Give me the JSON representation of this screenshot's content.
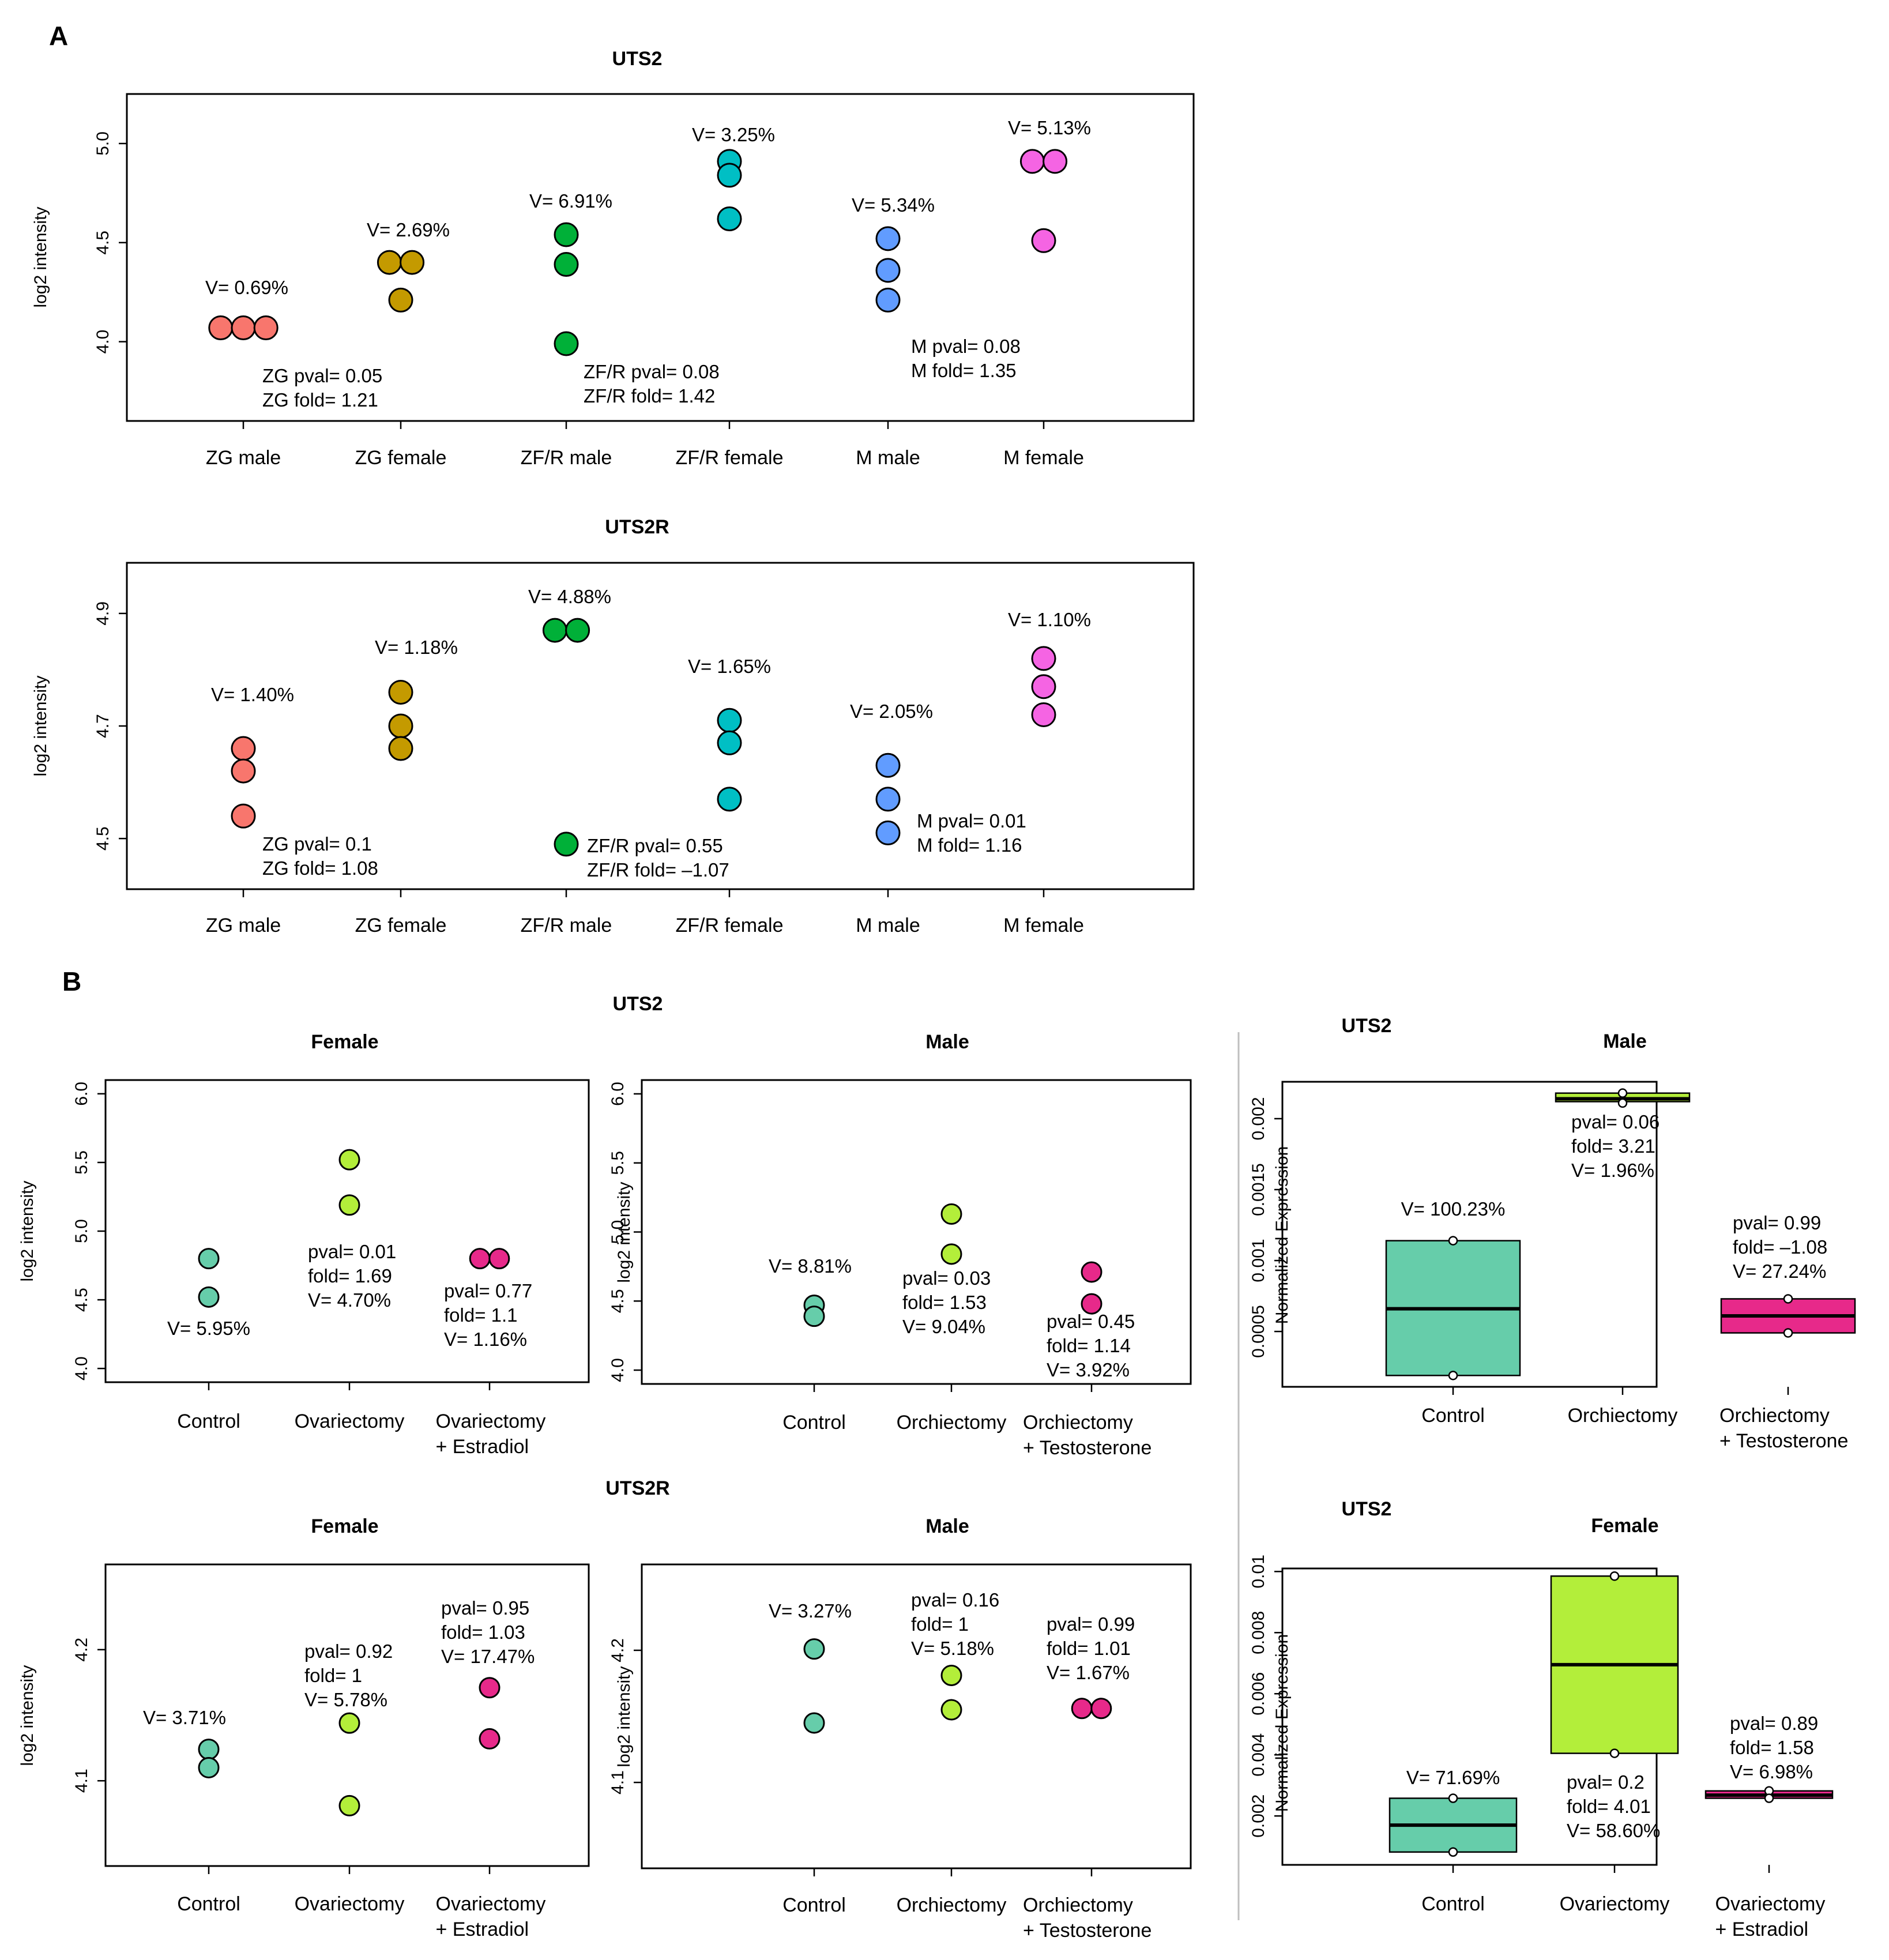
{
  "panel_labels": [
    "A",
    "B"
  ],
  "section_titles": {
    "b_uts2": "UTS2",
    "b_uts2r": "UTS2R"
  },
  "chart_data": [
    {
      "id": "A1",
      "type": "scatter",
      "title": "UTS2",
      "ylabel": "log2 intensity",
      "ylim": [
        3.6,
        5.25
      ],
      "yticks": [
        "4.0",
        "4.5",
        "5.0"
      ],
      "ytick_values": [
        4.0,
        4.5,
        5.0
      ],
      "categories": [
        "ZG male",
        "ZG female",
        "ZF/R male",
        "ZF/R female",
        "M male",
        "M female"
      ],
      "series": [
        {
          "category": "ZG male",
          "color": "#F8766D",
          "points": [
            [
              -0.14,
              4.07
            ],
            [
              0,
              4.07
            ],
            [
              0.14,
              4.07
            ]
          ]
        },
        {
          "category": "ZG female",
          "color": "#C49A00",
          "points": [
            [
              -0.07,
              4.4
            ],
            [
              0.07,
              4.4
            ],
            [
              0,
              4.21
            ]
          ]
        },
        {
          "category": "ZF/R male",
          "color": "#00B038",
          "points": [
            [
              0,
              4.54
            ],
            [
              0,
              4.39
            ],
            [
              0,
              3.99
            ]
          ]
        },
        {
          "category": "ZF/R female",
          "color": "#00BFC4",
          "points": [
            [
              0,
              4.91
            ],
            [
              0,
              4.84
            ],
            [
              0,
              4.62
            ]
          ]
        },
        {
          "category": "M male",
          "color": "#619CFF",
          "points": [
            [
              0,
              4.52
            ],
            [
              0,
              4.36
            ],
            [
              0,
              4.21
            ]
          ]
        },
        {
          "category": "M female",
          "color": "#F564E3",
          "points": [
            [
              -0.07,
              4.91
            ],
            [
              0.07,
              4.91
            ],
            [
              0,
              4.51
            ]
          ]
        }
      ],
      "annotations": [
        {
          "text": "V= 0.69%"
        },
        {
          "text": "V= 2.69%"
        },
        {
          "text": "V= 6.91%"
        },
        {
          "text": "V= 3.25%"
        },
        {
          "text": "V= 5.34%"
        },
        {
          "text": "V= 5.13%"
        },
        {
          "text": "ZG pval= 0.05"
        },
        {
          "text": "ZG fold= 1.21"
        },
        {
          "text": "ZF/R pval= 0.08"
        },
        {
          "text": "ZF/R fold= 1.42"
        },
        {
          "text": "M pval= 0.08"
        },
        {
          "text": "M fold= 1.35"
        }
      ]
    },
    {
      "id": "A2",
      "type": "scatter",
      "title": "UTS2R",
      "ylabel": "log2 intensity",
      "ylim": [
        4.41,
        4.99
      ],
      "yticks": [
        "4.5",
        "4.7",
        "4.9"
      ],
      "ytick_values": [
        4.5,
        4.7,
        4.9
      ],
      "categories": [
        "ZG male",
        "ZG female",
        "ZF/R male",
        "ZF/R female",
        "M male",
        "M female"
      ],
      "series": [
        {
          "category": "ZG male",
          "color": "#F8766D",
          "points": [
            [
              0,
              4.66
            ],
            [
              0,
              4.62
            ],
            [
              0,
              4.54
            ]
          ]
        },
        {
          "category": "ZG female",
          "color": "#C49A00",
          "points": [
            [
              0,
              4.76
            ],
            [
              0,
              4.7
            ],
            [
              0,
              4.66
            ]
          ]
        },
        {
          "category": "ZF/R male",
          "color": "#00B038",
          "points": [
            [
              -0.07,
              4.87
            ],
            [
              0.07,
              4.87
            ],
            [
              0,
              4.49
            ]
          ]
        },
        {
          "category": "ZF/R female",
          "color": "#00BFC4",
          "points": [
            [
              0,
              4.71
            ],
            [
              0,
              4.67
            ],
            [
              0,
              4.57
            ]
          ]
        },
        {
          "category": "M male",
          "color": "#619CFF",
          "points": [
            [
              0,
              4.63
            ],
            [
              0,
              4.57
            ],
            [
              0,
              4.51
            ]
          ]
        },
        {
          "category": "M female",
          "color": "#F564E3",
          "points": [
            [
              0,
              4.82
            ],
            [
              0,
              4.77
            ],
            [
              0,
              4.72
            ]
          ]
        }
      ],
      "annotations": [
        {
          "text": "V= 1.40%"
        },
        {
          "text": "V= 1.18%"
        },
        {
          "text": "V= 4.88%"
        },
        {
          "text": "V= 1.65%"
        },
        {
          "text": "V= 2.05%"
        },
        {
          "text": "V= 1.10%"
        },
        {
          "text": "ZG pval= 0.1"
        },
        {
          "text": "ZG fold= 1.08"
        },
        {
          "text": "ZF/R pval= 0.55"
        },
        {
          "text": "ZF/R fold= –1.07"
        },
        {
          "text": "M pval= 0.01"
        },
        {
          "text": "M fold= 1.16"
        }
      ]
    },
    {
      "id": "B1",
      "type": "scatter",
      "title": "Female",
      "ylabel": "log2 intensity",
      "ylim": [
        3.9,
        6.1
      ],
      "yticks": [
        "4.0",
        "4.5",
        "5.0",
        "5.5",
        "6.0"
      ],
      "ytick_values": [
        4.0,
        4.5,
        5.0,
        5.5,
        6.0
      ],
      "categories": [
        [
          "Control"
        ],
        [
          "Ovariectomy"
        ],
        [
          "Ovariectomy",
          "+ Estradiol"
        ]
      ],
      "series": [
        {
          "category": "Control",
          "color": "#66CDAA",
          "points": [
            [
              0,
              4.8
            ],
            [
              0,
              4.52
            ]
          ]
        },
        {
          "category": "Ovariectomy",
          "color": "#B3EE3A",
          "points": [
            [
              0,
              5.52
            ],
            [
              0,
              5.19
            ]
          ]
        },
        {
          "category": "Ovariectomy + Estradiol",
          "color": "#E7298A",
          "points": [
            [
              -0.06,
              4.8
            ],
            [
              0.06,
              4.8
            ]
          ]
        }
      ],
      "annotations": [
        {
          "text": "V= 5.95%"
        },
        {
          "text": "pval= 0.01"
        },
        {
          "text": "fold= 1.69"
        },
        {
          "text": "V= 4.70%"
        },
        {
          "text": "pval= 0.77"
        },
        {
          "text": "fold= 1.1"
        },
        {
          "text": "V= 1.16%"
        }
      ]
    },
    {
      "id": "B2",
      "type": "scatter",
      "title": "Male",
      "ylabel": "log2 intensity",
      "ylim": [
        3.9,
        6.1
      ],
      "yticks": [
        "4.0",
        "4.5",
        "5.0",
        "5.5",
        "6.0"
      ],
      "ytick_values": [
        4.0,
        4.5,
        5.0,
        5.5,
        6.0
      ],
      "categories": [
        [
          "Control"
        ],
        [
          "Orchiectomy"
        ],
        [
          "Orchiectomy",
          "+ Testosterone"
        ]
      ],
      "series": [
        {
          "category": "Control",
          "color": "#66CDAA",
          "points": [
            [
              0,
              4.47
            ],
            [
              0,
              4.39
            ]
          ]
        },
        {
          "category": "Orchiectomy",
          "color": "#B3EE3A",
          "points": [
            [
              0,
              5.13
            ],
            [
              0,
              4.84
            ]
          ]
        },
        {
          "category": "Orchiectomy + Testosterone",
          "color": "#E7298A",
          "points": [
            [
              0,
              4.71
            ],
            [
              0,
              4.48
            ]
          ]
        }
      ],
      "annotations": [
        {
          "text": "V= 8.81%"
        },
        {
          "text": "pval= 0.03"
        },
        {
          "text": "fold= 1.53"
        },
        {
          "text": "V= 9.04%"
        },
        {
          "text": "pval= 0.45"
        },
        {
          "text": "fold= 1.14"
        },
        {
          "text": "V= 3.92%"
        }
      ]
    },
    {
      "id": "B3",
      "type": "scatter",
      "title": "Female",
      "ylabel": "log2 intensity",
      "ylim": [
        4.035,
        4.265
      ],
      "yticks": [
        "4.1",
        "4.2"
      ],
      "ytick_values": [
        4.1,
        4.2
      ],
      "categories": [
        [
          "Control"
        ],
        [
          "Ovariectomy"
        ],
        [
          "Ovariectomy",
          "+ Estradiol"
        ]
      ],
      "series": [
        {
          "category": "Control",
          "color": "#66CDAA",
          "points": [
            [
              0,
              4.124
            ],
            [
              0,
              4.11
            ]
          ]
        },
        {
          "category": "Ovariectomy",
          "color": "#B3EE3A",
          "points": [
            [
              0,
              4.144
            ],
            [
              0,
              4.081
            ]
          ]
        },
        {
          "category": "Ovariectomy + Estradiol",
          "color": "#E7298A",
          "points": [
            [
              0,
              4.171
            ],
            [
              0,
              4.132
            ]
          ]
        }
      ],
      "annotations": [
        {
          "text": "V= 3.71%"
        },
        {
          "text": "pval= 0.92"
        },
        {
          "text": "fold= 1"
        },
        {
          "text": "V= 5.78%"
        },
        {
          "text": "pval= 0.95"
        },
        {
          "text": "fold= 1.03"
        },
        {
          "text": "V= 17.47%"
        }
      ]
    },
    {
      "id": "B4",
      "type": "scatter",
      "title": "Male",
      "ylabel": "log2 intensity",
      "ylim": [
        4.035,
        4.265
      ],
      "yticks": [
        "4.1",
        "4.2"
      ],
      "ytick_values": [
        4.1,
        4.2
      ],
      "categories": [
        [
          "Control"
        ],
        [
          "Orchiectomy"
        ],
        [
          "Orchiectomy",
          "+ Testosterone"
        ]
      ],
      "series": [
        {
          "category": "Control",
          "color": "#66CDAA",
          "points": [
            [
              0,
              4.201
            ],
            [
              0,
              4.145
            ]
          ]
        },
        {
          "category": "Orchiectomy",
          "color": "#B3EE3A",
          "points": [
            [
              0,
              4.181
            ],
            [
              0,
              4.155
            ]
          ]
        },
        {
          "category": "Orchiectomy + Testosterone",
          "color": "#E7298A",
          "points": [
            [
              -0.06,
              4.156
            ],
            [
              0.06,
              4.156
            ]
          ]
        }
      ],
      "annotations": [
        {
          "text": "V= 3.27%"
        },
        {
          "text": "pval= 0.16"
        },
        {
          "text": "fold= 1"
        },
        {
          "text": "V= 5.18%"
        },
        {
          "text": "pval= 0.99"
        },
        {
          "text": "fold= 1.01"
        },
        {
          "text": "V= 1.67%"
        }
      ]
    },
    {
      "id": "C1",
      "type": "box",
      "gene": "UTS2",
      "title": "Male",
      "ylabel": "Normalized Expression",
      "ylim": [
        0.00011,
        0.00226
      ],
      "yticks": [
        "0.0005",
        "0.001",
        "0.0015",
        "0.002"
      ],
      "ytick_values": [
        0.0005,
        0.001,
        0.0015,
        0.002
      ],
      "categories": [
        [
          "Control"
        ],
        [
          "Orchiectomy"
        ],
        [
          "Orchiectomy",
          "+ Testosterone"
        ]
      ],
      "boxes": [
        {
          "category": "Control",
          "color": "#66CDAA",
          "q1": 0.00019,
          "median": 0.00066,
          "q3": 0.00114,
          "points": [
            0.00114,
            0.00019
          ]
        },
        {
          "category": "Orchiectomy",
          "color": "#B3EE3A",
          "q1": 0.00212,
          "median": 0.00214,
          "q3": 0.00218,
          "points": [
            0.00218,
            0.00211
          ]
        },
        {
          "category": "Orchiectomy + Testosterone",
          "color": "#E7298A",
          "q1": 0.00049,
          "median": 0.00061,
          "q3": 0.00073,
          "points": [
            0.00073,
            0.00049
          ]
        }
      ],
      "annotations": [
        {
          "text": "V= 100.23%"
        },
        {
          "text": "pval= 0.06"
        },
        {
          "text": "fold= 3.21"
        },
        {
          "text": "V= 1.96%"
        },
        {
          "text": "pval= 0.99"
        },
        {
          "text": "fold= –1.08"
        },
        {
          "text": "V= 27.24%"
        }
      ]
    },
    {
      "id": "C2",
      "type": "box",
      "gene": "UTS2",
      "title": "Female",
      "ylabel": "Normalized Expression",
      "ylim": [
        0.0004,
        0.0101
      ],
      "yticks": [
        "0.002",
        "0.004",
        "0.006",
        "0.008",
        "0.01"
      ],
      "ytick_values": [
        0.002,
        0.004,
        0.006,
        0.008,
        0.01
      ],
      "categories": [
        [
          "Control"
        ],
        [
          "Ovariectomy"
        ],
        [
          "Ovariectomy",
          "+ Estradiol"
        ]
      ],
      "boxes": [
        {
          "category": "Control",
          "color": "#66CDAA",
          "q1": 0.00082,
          "median": 0.0017,
          "q3": 0.00258,
          "points": [
            0.00258,
            0.00082
          ]
        },
        {
          "category": "Ovariectomy",
          "color": "#B3EE3A",
          "q1": 0.00405,
          "median": 0.00695,
          "q3": 0.00985,
          "points": [
            0.00985,
            0.00405
          ]
        },
        {
          "category": "Ovariectomy + Estradiol",
          "color": "#E7298A",
          "q1": 0.00258,
          "median": 0.00268,
          "q3": 0.00282,
          "points": [
            0.00282,
            0.00258
          ]
        }
      ],
      "annotations": [
        {
          "text": "V= 71.69%"
        },
        {
          "text": "pval= 0.2"
        },
        {
          "text": "fold= 4.01"
        },
        {
          "text": "V= 58.60%"
        },
        {
          "text": "pval= 0.89"
        },
        {
          "text": "fold= 1.58"
        },
        {
          "text": "V= 6.98%"
        }
      ]
    }
  ]
}
